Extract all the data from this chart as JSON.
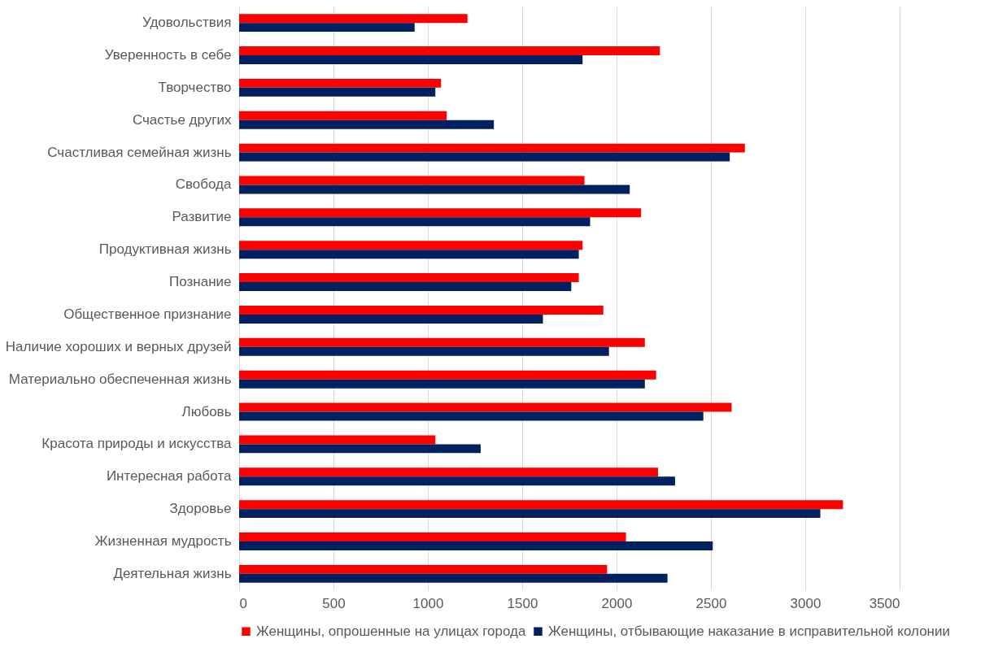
{
  "chart_data": {
    "type": "bar",
    "orientation": "horizontal",
    "categories": [
      "Удовольствия",
      "Уверенность в себе",
      "Творчество",
      "Счастье других",
      "Счастливая семейная жизнь",
      "Свобода",
      "Развитие",
      "Продуктивная жизнь",
      "Познание",
      "Общественное признание",
      "Наличие хороших и верных друзей",
      "Материально обеспеченная жизнь",
      "Любовь",
      "Красота природы и искусства",
      "Интересная работа",
      "Здоровье",
      "Жизненная мудрость",
      "Деятельная жизнь"
    ],
    "series": [
      {
        "name": "Женщины, опрошенные на улицах города",
        "color": "#ff0000",
        "values": [
          1210,
          2230,
          1070,
          1100,
          2680,
          1830,
          2130,
          1820,
          1800,
          1930,
          2150,
          2210,
          2610,
          1040,
          2220,
          3200,
          2050,
          1950
        ]
      },
      {
        "name": "Женщины, отбывающие наказание в исправительной колонии",
        "color": "#002060",
        "values": [
          930,
          1820,
          1040,
          1350,
          2600,
          2070,
          1860,
          1800,
          1760,
          1610,
          1960,
          2150,
          2460,
          1280,
          2310,
          3080,
          2510,
          2270
        ]
      }
    ],
    "xlim": [
      0,
      3500
    ],
    "xticks": [
      0,
      500,
      1000,
      1500,
      2000,
      2500,
      3000,
      3500
    ],
    "grid": "x",
    "legend": "bottom"
  }
}
